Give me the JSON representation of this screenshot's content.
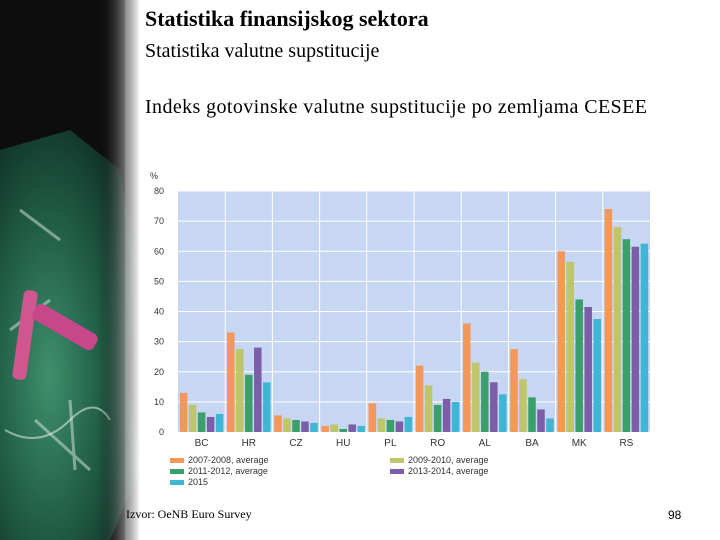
{
  "slide": {
    "title": "Statistika finansijskog sektora",
    "subtitle": "Statistika valutne supstitucije",
    "heading": "Indeks gotovinske valutne supstitucije po zemljama CESEE",
    "source": "Izvor: OeNB Euro Survey",
    "number": "98"
  },
  "colors": {
    "plot_background": "#c6d6f3",
    "grid": "#ffffff",
    "series": [
      "#f4975a",
      "#bfc56a",
      "#3aa06a",
      "#7b5ea7",
      "#3fb6d3"
    ]
  },
  "chart_data": {
    "type": "bar",
    "unit_label": "%",
    "ylim": [
      0,
      80
    ],
    "yticks": [
      0,
      10,
      20,
      30,
      40,
      50,
      60,
      70,
      80
    ],
    "grid": true,
    "legend_position": "bottom",
    "categories": [
      "BC",
      "HR",
      "CZ",
      "HU",
      "PL",
      "RO",
      "AL",
      "BA",
      "MK",
      "RS"
    ],
    "series": [
      {
        "name": "2007-2008, average",
        "values": [
          13,
          33,
          5.5,
          2,
          9.5,
          22,
          36,
          27.5,
          60,
          74
        ]
      },
      {
        "name": "2009-2010, average",
        "values": [
          9,
          27.5,
          4.5,
          2.5,
          4.5,
          15.5,
          23,
          17.5,
          56.5,
          68
        ]
      },
      {
        "name": "2011-2012, average",
        "values": [
          6.5,
          19,
          4,
          1,
          4,
          9,
          20,
          11.5,
          44,
          64
        ]
      },
      {
        "name": "2013-2014, average",
        "values": [
          5,
          28,
          3.5,
          2.5,
          3.5,
          11,
          16.5,
          7.5,
          41.5,
          61.5
        ]
      },
      {
        "name": "2015",
        "values": [
          6,
          16.5,
          3,
          2,
          5,
          10,
          12.5,
          4.5,
          37.5,
          62.5
        ]
      }
    ]
  }
}
